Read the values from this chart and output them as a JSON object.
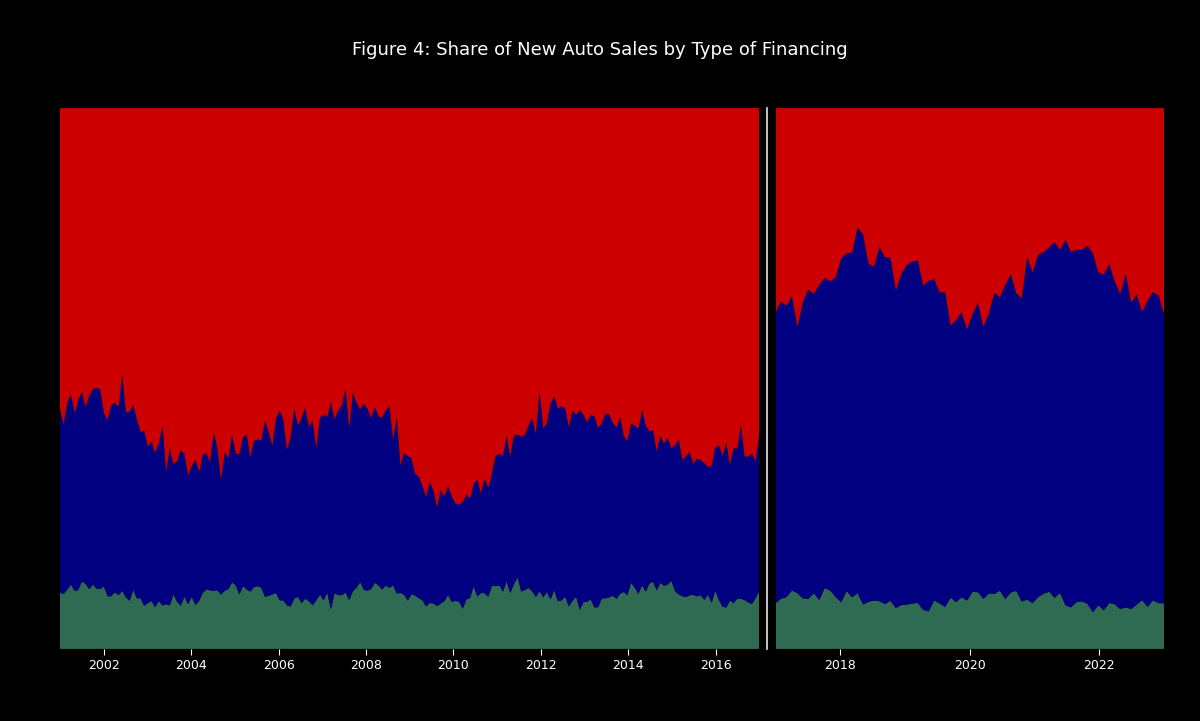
{
  "title": "Figure 4: Share of New Auto Sales by Type of Financing",
  "background_color": "#000000",
  "color_red": "#CC0000",
  "color_navy": "#000080",
  "color_teal": "#2E6B52",
  "figsize": [
    12.0,
    7.21
  ],
  "dpi": 100,
  "seed": 42
}
